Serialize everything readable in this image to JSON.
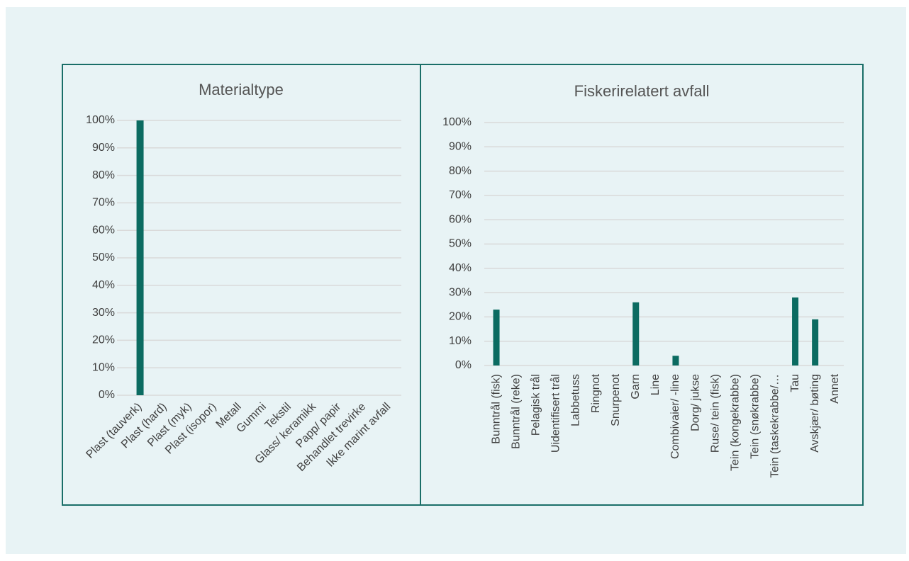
{
  "chart_data": [
    {
      "type": "bar",
      "title": "Materialtype",
      "categories": [
        "Plast (tauverk)",
        "Plast (hard)",
        "Plast (myk)",
        "Plast (isopor)",
        "Metall",
        "Gummi",
        "Tekstil",
        "Glass/ keramikk",
        "Papp/ papir",
        "Behandlet trevirke",
        "Ikke marint avfall"
      ],
      "values": [
        100,
        0,
        0,
        0,
        0,
        0,
        0,
        0,
        0,
        0,
        0
      ],
      "color": "#0b6b61",
      "ylim": [
        0,
        100
      ],
      "yticks": [
        {
          "value": 0,
          "label": "0%"
        },
        {
          "value": 10,
          "label": "10%"
        },
        {
          "value": 20,
          "label": "20%"
        },
        {
          "value": 30,
          "label": "30%"
        },
        {
          "value": 40,
          "label": "40%"
        },
        {
          "value": 50,
          "label": "50%"
        },
        {
          "value": 60,
          "label": "60%"
        },
        {
          "value": 70,
          "label": "70%"
        },
        {
          "value": 80,
          "label": "80%"
        },
        {
          "value": 90,
          "label": "90%"
        },
        {
          "value": 100,
          "label": "100%"
        }
      ],
      "grid": true
    },
    {
      "type": "bar",
      "title": "Fiskerirelatert avfall",
      "categories": [
        "Bunntrål (fisk)",
        "Bunntrål (reke)",
        "Pelagisk trål",
        "Uidentifisert trål",
        "Labbetuss",
        "Ringnot",
        "Snurpenot",
        "Garn",
        "Line",
        "Combivaier/ -line",
        "Dorg/ jukse",
        "Ruse/ tein (fisk)",
        "Tein (kongekrabbe)",
        "Tein (snøkrabbe)",
        "Tein (taskekrabbe/…",
        "Tau",
        "Avskjær/ bøting",
        "Annet"
      ],
      "values": [
        23,
        0,
        0,
        0,
        0,
        0,
        0,
        26,
        0,
        4,
        0,
        0,
        0,
        0,
        0,
        28,
        19,
        0
      ],
      "color": "#0b6b61",
      "ylim": [
        0,
        100
      ],
      "yticks": [
        {
          "value": 0,
          "label": "0%"
        },
        {
          "value": 10,
          "label": "10%"
        },
        {
          "value": 20,
          "label": "20%"
        },
        {
          "value": 30,
          "label": "30%"
        },
        {
          "value": 40,
          "label": "40%"
        },
        {
          "value": 50,
          "label": "50%"
        },
        {
          "value": 60,
          "label": "60%"
        },
        {
          "value": 70,
          "label": "70%"
        },
        {
          "value": 80,
          "label": "80%"
        },
        {
          "value": 90,
          "label": "90%"
        },
        {
          "value": 100,
          "label": "100%"
        }
      ],
      "grid": true
    }
  ]
}
